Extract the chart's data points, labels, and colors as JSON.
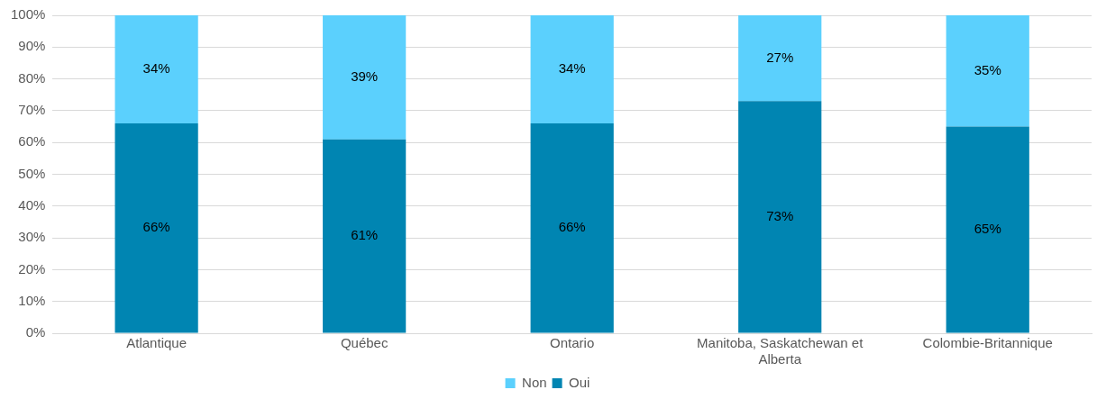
{
  "chart_data": {
    "type": "bar",
    "stacked": true,
    "categories": [
      "Atlantique",
      "Québec",
      "Ontario",
      "Manitoba, Saskatchewan et Alberta",
      "Colombie-Britannique"
    ],
    "series": [
      {
        "name": "Oui",
        "color": "#0085b2",
        "values": [
          66,
          61,
          66,
          73,
          65
        ],
        "value_labels": [
          "66%",
          "61%",
          "66%",
          "73%",
          "65%"
        ]
      },
      {
        "name": "Non",
        "color": "#5bd0fd",
        "values": [
          34,
          39,
          34,
          27,
          35
        ],
        "value_labels": [
          "34%",
          "39%",
          "34%",
          "27%",
          "35%"
        ]
      }
    ],
    "ylim": [
      0,
      100
    ],
    "yticks": [
      {
        "value": 0,
        "label": "0%"
      },
      {
        "value": 10,
        "label": "10%"
      },
      {
        "value": 20,
        "label": "20%"
      },
      {
        "value": 30,
        "label": "30%"
      },
      {
        "value": 40,
        "label": "40%"
      },
      {
        "value": 50,
        "label": "50%"
      },
      {
        "value": 60,
        "label": "60%"
      },
      {
        "value": 70,
        "label": "70%"
      },
      {
        "value": 80,
        "label": "80%"
      },
      {
        "value": 90,
        "label": "90%"
      },
      {
        "value": 100,
        "label": "100%"
      }
    ],
    "grid": "y",
    "legend": "bottom"
  }
}
